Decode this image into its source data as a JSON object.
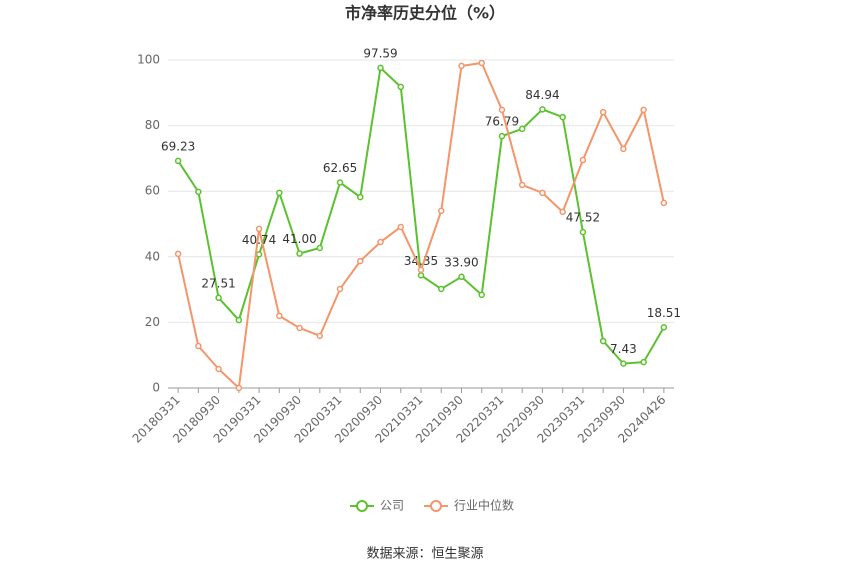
{
  "chart_data": {
    "type": "line",
    "title": "市净率历史分位（%）",
    "categories": [
      "20180331",
      null,
      "20180930",
      null,
      "20190331",
      null,
      "20190930",
      null,
      "20200331",
      null,
      "20200930",
      null,
      "20210331",
      null,
      "20210930",
      null,
      "20220331",
      null,
      "20220930",
      null,
      "20230331",
      null,
      "20230930",
      null,
      "20240426"
    ],
    "series": [
      {
        "name": "公司",
        "color": "#5cc12f",
        "values": [
          69.23,
          59.8,
          27.51,
          20.7,
          40.74,
          59.5,
          41.0,
          42.7,
          62.65,
          58.2,
          97.59,
          91.8,
          34.35,
          30.2,
          33.9,
          28.4,
          76.79,
          79.0,
          84.94,
          82.6,
          47.52,
          14.3,
          7.43,
          7.9,
          18.51
        ],
        "value_labels": [
          "69.23",
          null,
          "27.51",
          null,
          "40.74",
          null,
          "41.00",
          null,
          "62.65",
          null,
          "97.59",
          null,
          "34.35",
          null,
          "33.90",
          null,
          "76.79",
          null,
          "84.94",
          null,
          "47.52",
          null,
          "7.43",
          null,
          "18.51"
        ]
      },
      {
        "name": "行业中位数",
        "color": "#f4956a",
        "values": [
          40.9,
          12.8,
          5.8,
          0,
          48.5,
          22.0,
          18.3,
          15.9,
          30.2,
          38.7,
          44.5,
          49.1,
          36.0,
          54.0,
          98.2,
          99.1,
          84.8,
          61.9,
          59.5,
          53.7,
          69.5,
          84.1,
          72.9,
          84.8,
          56.4
        ]
      }
    ],
    "ylim": [
      0,
      100
    ],
    "yticks": [
      0,
      20,
      40,
      60,
      80,
      100
    ],
    "grid": true,
    "legend": "bottom",
    "source": "数据来源：恒生聚源"
  }
}
